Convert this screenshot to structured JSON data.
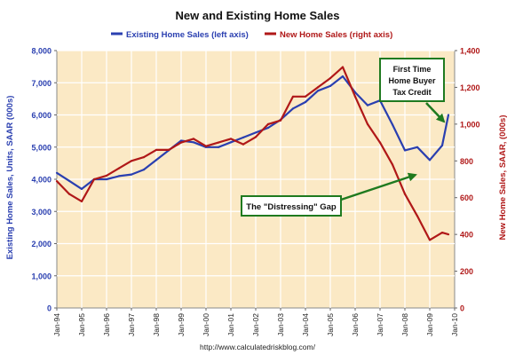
{
  "chart_data": {
    "type": "line",
    "title": "New and Existing Home Sales",
    "legend_position": "top-center",
    "grid": true,
    "plot_background": "#fbe9c5",
    "colors": {
      "existing": "#2a3fb0",
      "new": "#b01818",
      "annotation": "#1f7a1f"
    },
    "ylabel_left": "Existing Home Sales, Units, SAAR (000s)",
    "ylabel_right": "New Home Sales, SAAR, (000s)",
    "ylim_left": [
      0,
      8000
    ],
    "ylim_right": [
      0,
      1400
    ],
    "yticks_left": [
      {
        "value": 0,
        "label": "0"
      },
      {
        "value": 1000,
        "label": "1,000"
      },
      {
        "value": 2000,
        "label": "2,000"
      },
      {
        "value": 3000,
        "label": "3,000"
      },
      {
        "value": 4000,
        "label": "4,000"
      },
      {
        "value": 5000,
        "label": "5,000"
      },
      {
        "value": 6000,
        "label": "6,000"
      },
      {
        "value": 7000,
        "label": "7,000"
      },
      {
        "value": 8000,
        "label": "8,000"
      }
    ],
    "yticks_right": [
      {
        "value": 0,
        "label": "0"
      },
      {
        "value": 200,
        "label": "200"
      },
      {
        "value": 400,
        "label": "400"
      },
      {
        "value": 600,
        "label": "600"
      },
      {
        "value": 800,
        "label": "800"
      },
      {
        "value": 1000,
        "label": "1,000"
      },
      {
        "value": 1200,
        "label": "1,200"
      },
      {
        "value": 1400,
        "label": "1,400"
      }
    ],
    "xlim": [
      "1994-01",
      "2010-01"
    ],
    "xticks": [
      {
        "date": "1994-01",
        "label": "Jan-94"
      },
      {
        "date": "1995-01",
        "label": "Jan-95"
      },
      {
        "date": "1996-01",
        "label": "Jan-96"
      },
      {
        "date": "1997-01",
        "label": "Jan-97"
      },
      {
        "date": "1998-01",
        "label": "Jan-98"
      },
      {
        "date": "1999-01",
        "label": "Jan-99"
      },
      {
        "date": "2000-01",
        "label": "Jan-00"
      },
      {
        "date": "2001-01",
        "label": "Jan-01"
      },
      {
        "date": "2002-01",
        "label": "Jan-02"
      },
      {
        "date": "2003-01",
        "label": "Jan-03"
      },
      {
        "date": "2004-01",
        "label": "Jan-04"
      },
      {
        "date": "2005-01",
        "label": "Jan-05"
      },
      {
        "date": "2006-01",
        "label": "Jan-06"
      },
      {
        "date": "2007-01",
        "label": "Jan-07"
      },
      {
        "date": "2008-01",
        "label": "Jan-08"
      },
      {
        "date": "2009-01",
        "label": "Jan-09"
      },
      {
        "date": "2010-01",
        "label": "Jan-10"
      }
    ],
    "series": [
      {
        "name": "Existing Home Sales (left axis)",
        "axis": "left",
        "points": [
          {
            "x": "1994-01",
            "y": 4200
          },
          {
            "x": "1994-07",
            "y": 3950
          },
          {
            "x": "1995-01",
            "y": 3700
          },
          {
            "x": "1995-07",
            "y": 4000
          },
          {
            "x": "1996-01",
            "y": 4000
          },
          {
            "x": "1996-07",
            "y": 4100
          },
          {
            "x": "1997-01",
            "y": 4150
          },
          {
            "x": "1997-07",
            "y": 4300
          },
          {
            "x": "1998-01",
            "y": 4600
          },
          {
            "x": "1998-07",
            "y": 4900
          },
          {
            "x": "1999-01",
            "y": 5200
          },
          {
            "x": "1999-07",
            "y": 5150
          },
          {
            "x": "2000-01",
            "y": 5000
          },
          {
            "x": "2000-07",
            "y": 5000
          },
          {
            "x": "2001-01",
            "y": 5150
          },
          {
            "x": "2001-07",
            "y": 5300
          },
          {
            "x": "2002-01",
            "y": 5450
          },
          {
            "x": "2002-07",
            "y": 5600
          },
          {
            "x": "2003-01",
            "y": 5850
          },
          {
            "x": "2003-07",
            "y": 6200
          },
          {
            "x": "2004-01",
            "y": 6400
          },
          {
            "x": "2004-07",
            "y": 6750
          },
          {
            "x": "2005-01",
            "y": 6900
          },
          {
            "x": "2005-07",
            "y": 7200
          },
          {
            "x": "2006-01",
            "y": 6700
          },
          {
            "x": "2006-07",
            "y": 6300
          },
          {
            "x": "2007-01",
            "y": 6450
          },
          {
            "x": "2007-07",
            "y": 5700
          },
          {
            "x": "2008-01",
            "y": 4900
          },
          {
            "x": "2008-07",
            "y": 5000
          },
          {
            "x": "2009-01",
            "y": 4600
          },
          {
            "x": "2009-07",
            "y": 5050
          },
          {
            "x": "2009-10",
            "y": 6000
          }
        ]
      },
      {
        "name": "New Home Sales (right axis)",
        "axis": "right",
        "points": [
          {
            "x": "1994-01",
            "y": 690
          },
          {
            "x": "1994-07",
            "y": 620
          },
          {
            "x": "1995-01",
            "y": 580
          },
          {
            "x": "1995-07",
            "y": 700
          },
          {
            "x": "1996-01",
            "y": 720
          },
          {
            "x": "1996-07",
            "y": 760
          },
          {
            "x": "1997-01",
            "y": 800
          },
          {
            "x": "1997-07",
            "y": 820
          },
          {
            "x": "1998-01",
            "y": 860
          },
          {
            "x": "1998-07",
            "y": 860
          },
          {
            "x": "1999-01",
            "y": 900
          },
          {
            "x": "1999-07",
            "y": 920
          },
          {
            "x": "2000-01",
            "y": 880
          },
          {
            "x": "2000-07",
            "y": 900
          },
          {
            "x": "2001-01",
            "y": 920
          },
          {
            "x": "2001-07",
            "y": 890
          },
          {
            "x": "2002-01",
            "y": 930
          },
          {
            "x": "2002-07",
            "y": 1000
          },
          {
            "x": "2003-01",
            "y": 1020
          },
          {
            "x": "2003-07",
            "y": 1150
          },
          {
            "x": "2004-01",
            "y": 1150
          },
          {
            "x": "2004-07",
            "y": 1200
          },
          {
            "x": "2005-01",
            "y": 1250
          },
          {
            "x": "2005-07",
            "y": 1310
          },
          {
            "x": "2006-01",
            "y": 1150
          },
          {
            "x": "2006-07",
            "y": 1000
          },
          {
            "x": "2007-01",
            "y": 900
          },
          {
            "x": "2007-07",
            "y": 780
          },
          {
            "x": "2008-01",
            "y": 620
          },
          {
            "x": "2008-07",
            "y": 500
          },
          {
            "x": "2009-01",
            "y": 370
          },
          {
            "x": "2009-07",
            "y": 410
          },
          {
            "x": "2009-10",
            "y": 400
          }
        ]
      }
    ],
    "annotations": [
      {
        "text": "First Time Home Buyer Tax Credit",
        "lines": [
          "First Time",
          "Home Buyer",
          "Tax Credit"
        ]
      },
      {
        "text": "The \"Distressing\" Gap"
      }
    ],
    "source": "http://www.calculatedriskblog.com/"
  }
}
